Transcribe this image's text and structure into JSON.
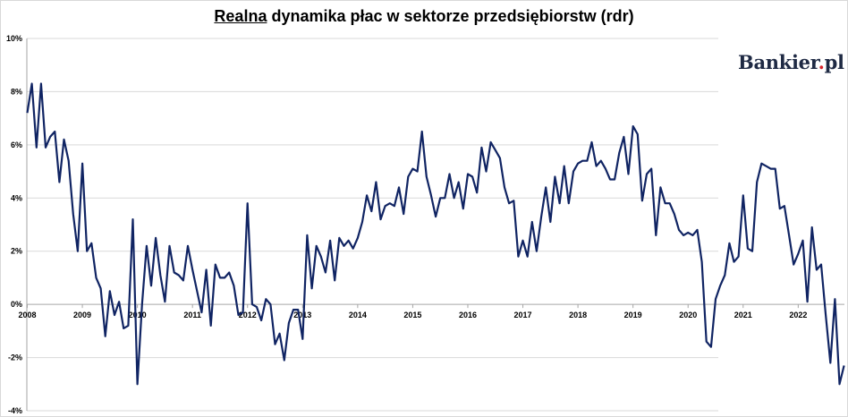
{
  "title": {
    "underlined": "Realna",
    "rest": " dynamika płac w sektorze przedsiębiorstw (rdr)"
  },
  "logo": {
    "main": "Bankier",
    "dot": ".",
    "tld": "pl"
  },
  "colors": {
    "line": "#102463",
    "grid": "#d9d9d9",
    "axis": "#a6a6a6",
    "logo_dot": "#d8232a"
  },
  "chart_data": {
    "type": "line",
    "title": "Realna dynamika płac w sektorze przedsiębiorstw (rdr)",
    "xlabel": "",
    "ylabel": "",
    "ylim": [
      -4,
      10
    ],
    "y_ticks": [
      10,
      8,
      6,
      4,
      2,
      0,
      -2,
      -4
    ],
    "y_tick_labels": [
      "10%",
      "8%",
      "6%",
      "4%",
      "2%",
      "0%",
      "-2%",
      "-4%"
    ],
    "x_ticks": [
      "2008",
      "2009",
      "2010",
      "2011",
      "2012",
      "2013",
      "2014",
      "2015",
      "2016",
      "2017",
      "2018",
      "2019",
      "2020",
      "2021",
      "2022"
    ],
    "grid": "horizontal",
    "legend": "none",
    "series": [
      {
        "start": "2008-01",
        "frequency": "monthly",
        "values": [
          7.2,
          8.3,
          5.9,
          8.3,
          5.9,
          6.3,
          6.5,
          4.6,
          6.2,
          5.4,
          3.4,
          2.0,
          5.3,
          2.0,
          2.3,
          1.0,
          0.6,
          -1.2,
          0.5,
          -0.4,
          0.1,
          -0.9,
          -0.8,
          3.2,
          -3.0,
          0.0,
          2.2,
          0.7,
          2.5,
          1.1,
          0.1,
          2.2,
          1.2,
          1.1,
          0.9,
          2.2,
          1.3,
          0.5,
          -0.3,
          1.3,
          -0.8,
          1.5,
          1.0,
          1.0,
          1.2,
          0.7,
          -0.4,
          -0.3,
          3.8,
          0.0,
          -0.1,
          -0.6,
          0.2,
          0.0,
          -1.5,
          -1.1,
          -2.1,
          -0.7,
          -0.2,
          -0.2,
          -1.3,
          2.6,
          0.6,
          2.2,
          1.8,
          1.2,
          2.4,
          0.9,
          2.5,
          2.2,
          2.4,
          2.1,
          2.5,
          3.1,
          4.1,
          3.5,
          4.6,
          3.2,
          3.7,
          3.8,
          3.7,
          4.4,
          3.4,
          4.8,
          5.1,
          5.0,
          6.5,
          4.8,
          4.1,
          3.3,
          4.0,
          4.0,
          4.9,
          4.0,
          4.6,
          3.6,
          4.9,
          4.8,
          4.2,
          5.9,
          5.0,
          6.1,
          5.8,
          5.5,
          4.4,
          3.8,
          3.9,
          1.8,
          2.4,
          1.8,
          3.1,
          2.0,
          3.3,
          4.4,
          3.1,
          4.8,
          3.8,
          5.2,
          3.8,
          5.0,
          5.3,
          5.4,
          5.4,
          6.1,
          5.2,
          5.4,
          5.1,
          4.7,
          4.7,
          5.7,
          6.3,
          4.9,
          6.7,
          6.4,
          3.9,
          4.9,
          5.1,
          2.6,
          4.4,
          3.8,
          3.8,
          3.4,
          2.8,
          2.6,
          2.7,
          2.6,
          2.8,
          1.6,
          -1.4,
          -1.6,
          0.2,
          0.7,
          1.1,
          2.3,
          1.6,
          1.8,
          4.1,
          2.1,
          2.0,
          4.6,
          5.3,
          5.2,
          5.1,
          5.1,
          3.6,
          3.7,
          2.6,
          1.5,
          1.9,
          2.4,
          0.1,
          2.9,
          1.3,
          1.5,
          -0.4,
          -2.2,
          0.2,
          -3.0,
          -2.3
        ]
      }
    ]
  }
}
